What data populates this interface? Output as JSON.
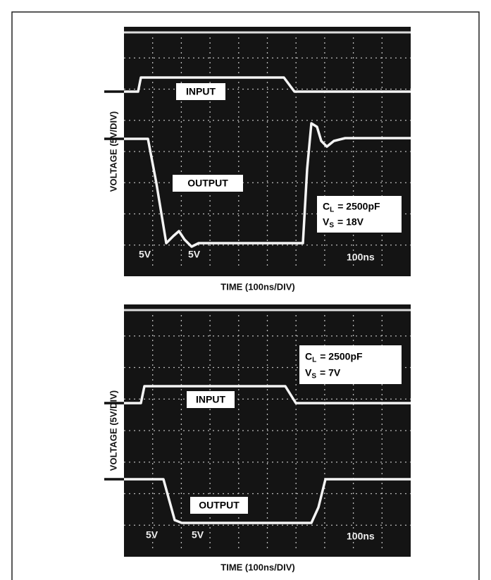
{
  "panels": [
    {
      "y_label": "VOLTAGE (5V/DIV)",
      "x_label": "TIME (100ns/DIV)",
      "input_label": "INPUT",
      "output_label": "OUTPUT",
      "cap_symbol": "C",
      "cap_sub": "L",
      "cap_value": "= 2500pF",
      "supply_symbol": "V",
      "supply_sub": "S",
      "supply_value": "= 18V",
      "readouts": [
        "5V",
        "5V",
        "100ns"
      ]
    },
    {
      "y_label": "VOLTAGE (5V/DIV)",
      "x_label": "TIME (100ns/DIV)",
      "input_label": "INPUT",
      "output_label": "OUTPUT",
      "cap_symbol": "C",
      "cap_sub": "L",
      "cap_value": "= 2500pF",
      "supply_symbol": "V",
      "supply_sub": "S",
      "supply_value": "= 7V",
      "readouts": [
        "5V",
        "5V",
        "100ns"
      ]
    }
  ]
}
